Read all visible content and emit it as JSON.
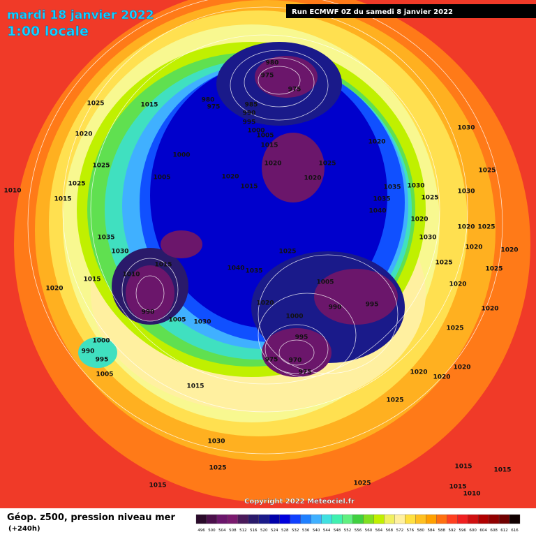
{
  "header": {
    "date": "mardi 18 janvier 2022",
    "time": "1:00 locale",
    "run": "Run ECMWF 0Z du samedi 8 janvier 2022"
  },
  "copyright": "Copyright 2022 Meteociel.fr",
  "footer": {
    "title": "Géop. z500, pression niveau mer",
    "lead": "(+240h)"
  },
  "legend": {
    "labels": [
      "496",
      "500",
      "504",
      "508",
      "512",
      "516",
      "520",
      "524",
      "528",
      "532",
      "536",
      "540",
      "544",
      "548",
      "552",
      "556",
      "560",
      "564",
      "568",
      "572",
      "576",
      "580",
      "584",
      "588",
      "592",
      "596",
      "600",
      "604",
      "608",
      "612",
      "616"
    ],
    "colors": [
      "#2a0a2a",
      "#4b0f4b",
      "#6b166b",
      "#7a1a6e",
      "#4a1a5a",
      "#2a1a6a",
      "#1a1a8a",
      "#0000aa",
      "#0000dd",
      "#1040ff",
      "#2080ff",
      "#40b0ff",
      "#40e0e0",
      "#40f0b0",
      "#60f080",
      "#40d040",
      "#80e020",
      "#c0f000",
      "#f0f060",
      "#fff0a0",
      "#ffe040",
      "#ffc020",
      "#ffa000",
      "#ff7010",
      "#ff4020",
      "#f02020",
      "#d01010",
      "#b00000",
      "#900000",
      "#700000",
      "#100000"
    ]
  },
  "isobar_labels": [
    "1025",
    "1015",
    "1020",
    "1025",
    "1000",
    "1005",
    "1025",
    "1015",
    "1010",
    "1035",
    "1030",
    "1015",
    "1010",
    "1015",
    "1020",
    "990",
    "1005",
    "1030",
    "1000",
    "990",
    "995",
    "1005",
    "1015",
    "1030",
    "1025",
    "1015",
    "980",
    "975",
    "975",
    "980",
    "975",
    "985",
    "990",
    "995",
    "1000",
    "1005",
    "1015",
    "1020",
    "1025",
    "1020",
    "1015",
    "1020",
    "1020",
    "1035",
    "1035",
    "1040",
    "1030",
    "1025",
    "1020",
    "1030",
    "1030",
    "1025",
    "1030",
    "1020",
    "1025",
    "1020",
    "1020",
    "1025",
    "1025",
    "1020",
    "1020",
    "1025",
    "1020",
    "1020",
    "1020",
    "1025",
    "1025",
    "1040",
    "1035",
    "1020",
    "1005",
    "990",
    "995",
    "1000",
    "995",
    "975",
    "970",
    "975",
    "1025",
    "1015",
    "1015",
    "1015",
    "1010"
  ]
}
